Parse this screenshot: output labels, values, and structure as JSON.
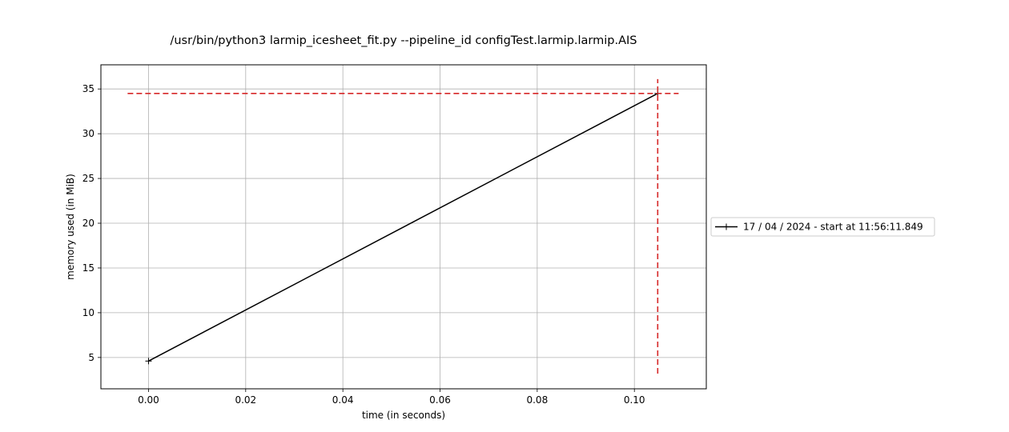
{
  "chart_data": {
    "type": "line",
    "title": "/usr/bin/python3 larmip_icesheet_fit.py --pipeline_id configTest.larmip.larmip.AIS",
    "xlabel": "time (in seconds)",
    "ylabel": "memory used (in MiB)",
    "xlim": [
      -0.0098,
      0.1148
    ],
    "ylim": [
      1.5,
      37.7
    ],
    "xticks": [
      0.0,
      0.02,
      0.04,
      0.06,
      0.08,
      0.1
    ],
    "xtick_labels": [
      "0.00",
      "0.02",
      "0.04",
      "0.06",
      "0.08",
      "0.10"
    ],
    "yticks": [
      5,
      10,
      15,
      20,
      25,
      30,
      35
    ],
    "ytick_labels": [
      "5",
      "10",
      "15",
      "20",
      "25",
      "30",
      "35"
    ],
    "grid": true,
    "series": [
      {
        "name": "17 / 04 / 2024 - start at 11:56:11.849",
        "color": "#000000",
        "marker": "+",
        "x": [
          0.0,
          0.1048
        ],
        "y": [
          4.6,
          34.5
        ]
      }
    ],
    "reference_lines": {
      "color": "#d62728",
      "style": "dashed",
      "horizontal": {
        "y": 34.5,
        "x_from": -0.0043,
        "x_to": 0.1091
      },
      "vertical": {
        "x": 0.1048,
        "y_from": 3.2,
        "y_to": 36.1
      }
    },
    "legend_position": "right, outside the plot"
  }
}
